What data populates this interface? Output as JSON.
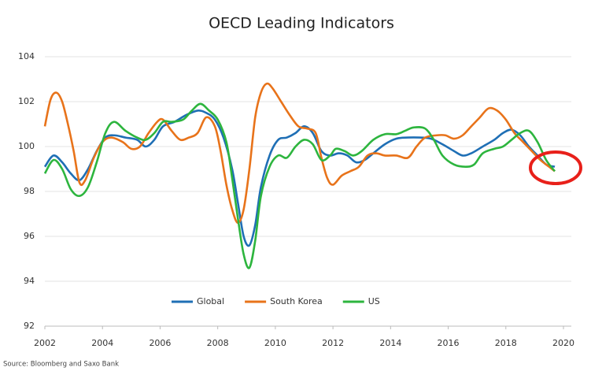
{
  "chart_data": {
    "type": "line",
    "title": "OECD Leading Indicators",
    "source": "Source: Bloomberg and Saxo Bank",
    "xlim": [
      2002,
      2020
    ],
    "xticks": [
      2002,
      2004,
      2006,
      2008,
      2010,
      2012,
      2014,
      2016,
      2018,
      2020
    ],
    "ylim": [
      92,
      104
    ],
    "yticks": [
      92,
      94,
      96,
      98,
      100,
      102,
      104
    ],
    "grid": true,
    "legend": "bottom",
    "series": [
      {
        "name": "Global",
        "color": "#1f6fb5",
        "x": [
          2002.0,
          2002.3,
          2002.6,
          2002.9,
          2003.2,
          2003.5,
          2003.8,
          2004.1,
          2004.4,
          2004.8,
          2005.2,
          2005.5,
          2005.8,
          2006.1,
          2006.5,
          2006.9,
          2007.3,
          2007.6,
          2007.9,
          2008.2,
          2008.5,
          2008.7,
          2008.9,
          2009.1,
          2009.3,
          2009.5,
          2009.8,
          2010.1,
          2010.4,
          2010.7,
          2011.0,
          2011.3,
          2011.6,
          2011.9,
          2012.2,
          2012.5,
          2012.8,
          2013.1,
          2013.4,
          2013.8,
          2014.2,
          2014.6,
          2015.0,
          2015.4,
          2015.8,
          2016.2,
          2016.5,
          2016.8,
          2017.2,
          2017.6,
          2017.9,
          2018.2,
          2018.5,
          2018.8,
          2019.1,
          2019.4,
          2019.7
        ],
        "values": [
          99.1,
          99.6,
          99.3,
          98.8,
          98.5,
          99.0,
          99.8,
          100.4,
          100.5,
          100.4,
          100.3,
          100.0,
          100.3,
          100.9,
          101.1,
          101.4,
          101.6,
          101.5,
          101.2,
          100.4,
          99.0,
          97.5,
          96.0,
          95.6,
          96.5,
          98.2,
          99.6,
          100.3,
          100.4,
          100.6,
          100.9,
          100.6,
          99.8,
          99.6,
          99.7,
          99.6,
          99.3,
          99.4,
          99.7,
          100.1,
          100.35,
          100.4,
          100.4,
          100.35,
          100.1,
          99.8,
          99.6,
          99.7,
          100.0,
          100.3,
          100.6,
          100.75,
          100.5,
          100.0,
          99.6,
          99.2,
          99.1
        ]
      },
      {
        "name": "South Korea",
        "color": "#e8731a",
        "x": [
          2002.0,
          2002.2,
          2002.4,
          2002.6,
          2002.8,
          2003.0,
          2003.2,
          2003.4,
          2003.7,
          2004.0,
          2004.3,
          2004.7,
          2005.0,
          2005.3,
          2005.6,
          2005.9,
          2006.1,
          2006.4,
          2006.7,
          2007.0,
          2007.3,
          2007.6,
          2007.9,
          2008.1,
          2008.3,
          2008.5,
          2008.7,
          2008.9,
          2009.1,
          2009.3,
          2009.5,
          2009.7,
          2009.9,
          2010.2,
          2010.5,
          2010.8,
          2011.1,
          2011.4,
          2011.6,
          2011.8,
          2012.0,
          2012.3,
          2012.6,
          2012.9,
          2013.2,
          2013.5,
          2013.8,
          2014.2,
          2014.6,
          2014.9,
          2015.2,
          2015.6,
          2015.9,
          2016.2,
          2016.5,
          2016.8,
          2017.1,
          2017.4,
          2017.7,
          2018.0,
          2018.3,
          2018.6,
          2018.9,
          2019.2,
          2019.5,
          2019.7
        ],
        "values": [
          100.9,
          102.1,
          102.4,
          102.0,
          101.0,
          99.8,
          98.4,
          98.5,
          99.5,
          100.2,
          100.4,
          100.2,
          99.9,
          100.0,
          100.6,
          101.1,
          101.2,
          100.7,
          100.3,
          100.4,
          100.6,
          101.3,
          100.9,
          99.8,
          98.3,
          97.2,
          96.6,
          97.2,
          99.0,
          101.3,
          102.4,
          102.8,
          102.6,
          102.0,
          101.4,
          100.9,
          100.8,
          100.6,
          99.5,
          98.6,
          98.3,
          98.7,
          98.9,
          99.1,
          99.6,
          99.7,
          99.6,
          99.6,
          99.5,
          100.0,
          100.4,
          100.5,
          100.5,
          100.35,
          100.5,
          100.9,
          101.3,
          101.7,
          101.6,
          101.2,
          100.6,
          100.2,
          99.8,
          99.4,
          99.1,
          98.9
        ]
      },
      {
        "name": "US",
        "color": "#2db53e",
        "x": [
          2002.0,
          2002.3,
          2002.6,
          2002.9,
          2003.2,
          2003.5,
          2003.8,
          2004.1,
          2004.4,
          2004.8,
          2005.2,
          2005.5,
          2005.8,
          2006.1,
          2006.4,
          2006.8,
          2007.1,
          2007.4,
          2007.7,
          2008.0,
          2008.3,
          2008.5,
          2008.7,
          2008.9,
          2009.1,
          2009.3,
          2009.5,
          2009.8,
          2010.1,
          2010.4,
          2010.7,
          2011.0,
          2011.3,
          2011.6,
          2011.9,
          2012.1,
          2012.4,
          2012.7,
          2013.0,
          2013.4,
          2013.8,
          2014.2,
          2014.5,
          2014.8,
          2015.2,
          2015.5,
          2015.8,
          2016.2,
          2016.6,
          2016.9,
          2017.2,
          2017.6,
          2017.9,
          2018.2,
          2018.5,
          2018.8,
          2019.1,
          2019.4,
          2019.7
        ],
        "values": [
          98.8,
          99.4,
          99.0,
          98.1,
          97.8,
          98.2,
          99.3,
          100.6,
          101.1,
          100.7,
          100.4,
          100.3,
          100.6,
          101.1,
          101.1,
          101.2,
          101.6,
          101.9,
          101.6,
          101.2,
          100.2,
          98.6,
          96.8,
          95.2,
          94.6,
          95.8,
          97.8,
          99.1,
          99.6,
          99.5,
          100.0,
          100.3,
          100.1,
          99.4,
          99.6,
          99.9,
          99.8,
          99.6,
          99.8,
          100.3,
          100.55,
          100.55,
          100.7,
          100.85,
          100.8,
          100.3,
          99.6,
          99.2,
          99.1,
          99.2,
          99.7,
          99.9,
          100.0,
          100.3,
          100.6,
          100.7,
          100.2,
          99.4,
          98.9
        ]
      }
    ]
  }
}
